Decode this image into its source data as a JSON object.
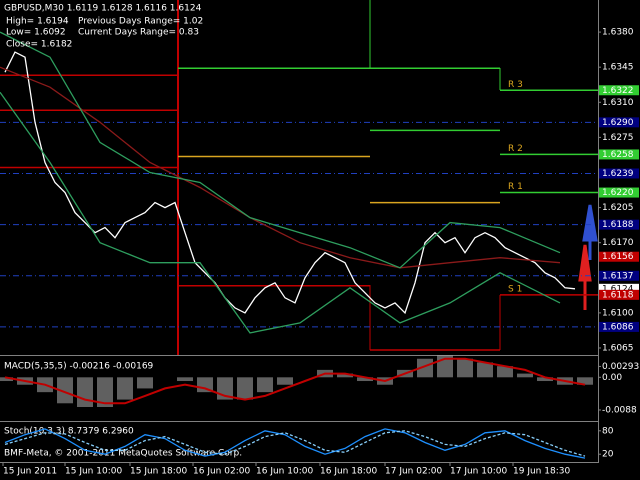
{
  "chart_data": [
    {
      "type": "line",
      "title": "GBPUSD,M30  1.6119 1.6128 1.6116 1.6124",
      "info": [
        "High= 1.6194",
        "Previous Days Range= 1.02",
        "Low= 1.6092",
        "Current Days Range= 0.83",
        "Close= 1.6182"
      ],
      "footer": "BMF-Meta, © 2001-2011 MetaQuotes Software Corp.",
      "xlim": [
        -0.5,
        59.3
      ],
      "ylim": [
        1.6058,
        1.6412
      ],
      "xticks": [
        {
          "value": -0.2,
          "label": "15 Jun 2011"
        },
        {
          "value": 6,
          "label": "15 Jun 10:00"
        },
        {
          "value": 12.5,
          "label": "15 Jun 18:00"
        },
        {
          "value": 18.8,
          "label": "16 Jun 02:00"
        },
        {
          "value": 25.1,
          "label": "16 Jun 10:00"
        },
        {
          "value": 31.5,
          "label": "16 Jun 18:00"
        },
        {
          "value": 38,
          "label": "17 Jun 02:00"
        },
        {
          "value": 44.5,
          "label": "17 Jun 10:00"
        },
        {
          "value": 50.8,
          "label": "19 Jun 18:30"
        }
      ],
      "yticks": [
        {
          "value": 1.638,
          "label": "1.6380"
        },
        {
          "value": 1.6345,
          "label": "1.6345"
        },
        {
          "value": 1.631,
          "label": "1.6310"
        },
        {
          "value": 1.6275,
          "label": "1.6275"
        },
        {
          "value": 1.6205,
          "label": "1.6205"
        },
        {
          "value": 1.617,
          "label": "1.6170"
        },
        {
          "value": 1.61,
          "label": "1.6100"
        },
        {
          "value": 1.6065,
          "label": "1.6065"
        }
      ],
      "series": [
        {
          "color": "#ffffff",
          "x": [
            0,
            1,
            2,
            3,
            4,
            5,
            6,
            7,
            8,
            9,
            10,
            11,
            12,
            13,
            14,
            15,
            16,
            17,
            18,
            19,
            20,
            21,
            22,
            23,
            24,
            25,
            26,
            27,
            28,
            29,
            30,
            31,
            32,
            33,
            34,
            35,
            36,
            37,
            38,
            39,
            40,
            41,
            42,
            43,
            44,
            45,
            46,
            47,
            48,
            49,
            50,
            51,
            52,
            53,
            54,
            55,
            56,
            57
          ],
          "values": [
            1.634,
            1.636,
            1.6355,
            1.629,
            1.625,
            1.623,
            1.622,
            1.62,
            1.619,
            1.618,
            1.6185,
            1.6175,
            1.619,
            1.6195,
            1.62,
            1.621,
            1.6205,
            1.621,
            1.618,
            1.615,
            1.614,
            1.613,
            1.6115,
            1.6105,
            1.61,
            1.6115,
            1.6125,
            1.613,
            1.6115,
            1.611,
            1.6135,
            1.615,
            1.616,
            1.6155,
            1.615,
            1.613,
            1.612,
            1.611,
            1.6105,
            1.611,
            1.61,
            1.613,
            1.617,
            1.618,
            1.617,
            1.6175,
            1.616,
            1.6175,
            1.618,
            1.6175,
            1.6165,
            1.616,
            1.6155,
            1.615,
            1.614,
            1.6135,
            1.6125,
            1.6124
          ]
        },
        {
          "color": "#8b1a1a",
          "x": [
            -0.5,
            4.5,
            9.5,
            14.5,
            19.5,
            24.5,
            29.5,
            34.5,
            39.5,
            44.5,
            49.5,
            55.5
          ],
          "values": [
            1.6345,
            1.6325,
            1.629,
            1.625,
            1.6225,
            1.6195,
            1.617,
            1.6155,
            1.6145,
            1.615,
            1.6155,
            1.615
          ]
        },
        {
          "color": "#2e9e5e",
          "x": [
            -0.5,
            4.5,
            9.5,
            14.5,
            19.5,
            24.5,
            29.5,
            34.5,
            39.5,
            44.5,
            49.5,
            55.5
          ],
          "values": [
            1.638,
            1.6355,
            1.627,
            1.624,
            1.623,
            1.6195,
            1.618,
            1.6165,
            1.6145,
            1.619,
            1.6185,
            1.616
          ]
        },
        {
          "color": "#2e9e5e",
          "x": [
            -0.5,
            4.5,
            9.5,
            14.5,
            19.5,
            24.5,
            29.5,
            34.5,
            39.5,
            44.5,
            49.5,
            55.5
          ],
          "values": [
            1.632,
            1.625,
            1.617,
            1.615,
            1.615,
            1.608,
            1.609,
            1.6125,
            1.609,
            1.611,
            1.614,
            1.611
          ]
        }
      ],
      "pivots": [
        {
          "x": [
            -0.5,
            17.3
          ],
          "value": 1.6337,
          "color": "#c00000"
        },
        {
          "x": [
            -0.5,
            17.3
          ],
          "value": 1.6302,
          "color": "#c00000"
        },
        {
          "x": [
            -0.5,
            17.3
          ],
          "value": 1.6245,
          "color": "#c00000"
        },
        {
          "x": [
            17.3,
            36.5
          ],
          "value": 1.6344,
          "color": "#32cd32"
        },
        {
          "x": [
            17.3,
            36.5
          ],
          "value": 1.6256,
          "color": "#daa520"
        },
        {
          "x": [
            17.3,
            36.5
          ],
          "value": 1.6127,
          "color": "#c00000"
        },
        {
          "x": [
            36.5,
            49.5
          ],
          "value": 1.6344,
          "color": "#32cd32"
        },
        {
          "x": [
            36.5,
            49.5
          ],
          "value": 1.6282,
          "color": "#32cd32"
        },
        {
          "x": [
            36.5,
            49.5
          ],
          "value": 1.621,
          "color": "#daa520"
        },
        {
          "x": [
            36.5,
            49.5
          ],
          "value": 1.6063,
          "color": "#c00000"
        },
        {
          "x": [
            49.5,
            59.3
          ],
          "value": 1.6322,
          "color": "#32cd32",
          "name": "R 3"
        },
        {
          "x": [
            49.5,
            59.3
          ],
          "value": 1.6258,
          "color": "#32cd32",
          "name": "R 2"
        },
        {
          "x": [
            49.5,
            59.3
          ],
          "value": 1.622,
          "color": "#32cd32",
          "name": "R 1"
        },
        {
          "x": [
            49.5,
            59.3
          ],
          "value": 1.6118,
          "color": "#c00000",
          "name": "S 1"
        }
      ],
      "levels": [
        {
          "value": 1.6322,
          "label": "1.6322",
          "color": "#32cd32"
        },
        {
          "value": 1.629,
          "label": "1.6290",
          "color": "#000080",
          "style": "dashed"
        },
        {
          "value": 1.6258,
          "label": "1.6258",
          "color": "#32cd32"
        },
        {
          "value": 1.6239,
          "label": "1.6239",
          "color": "#000080",
          "style": "dashed"
        },
        {
          "value": 1.622,
          "label": "1.6220",
          "color": "#32cd32"
        },
        {
          "value": 1.6188,
          "label": "1.6188",
          "color": "#000080",
          "style": "dashed"
        },
        {
          "value": 1.6156,
          "label": "1.6156",
          "color": "#c00000"
        },
        {
          "value": 1.6137,
          "label": "1.6137",
          "color": "#000080",
          "style": "dashed"
        },
        {
          "value": 1.6124,
          "label": "1.6124",
          "color": "#ffffff"
        },
        {
          "value": 1.6118,
          "label": "1.6118",
          "color": "#c00000"
        },
        {
          "value": 1.6086,
          "label": "1.6086",
          "color": "#000080",
          "style": "dashed"
        }
      ]
    },
    {
      "type": "macd",
      "title": "MACD(5,35,5) -0.00216 -0.00169",
      "xlim": [
        -0.5,
        59.3
      ],
      "ylim": [
        -0.0115,
        0.0052
      ],
      "yticks": [
        0.00293,
        {
          "value": 0,
          "label": "0.00"
        },
        -0.0088
      ],
      "series": [
        {
          "color": "#a0a0a0",
          "x": [
            0,
            2,
            4,
            6,
            8,
            10,
            12,
            14,
            16,
            18,
            20,
            22,
            24,
            26,
            28,
            30,
            32,
            34,
            36,
            38,
            40,
            42,
            44,
            46,
            48,
            50,
            52,
            54,
            56,
            58
          ],
          "values": [
            -0.001,
            -0.002,
            -0.004,
            -0.007,
            -0.008,
            -0.008,
            -0.006,
            -0.003,
            0,
            -0.001,
            -0.004,
            -0.006,
            -0.006,
            -0.004,
            -0.002,
            0,
            0.002,
            0.001,
            -0.001,
            -0.002,
            0.002,
            0.005,
            0.006,
            0.005,
            0.004,
            0.003,
            0.001,
            -0.001,
            -0.002,
            -0.002
          ]
        },
        {
          "color": "#c00000",
          "x": [
            0,
            2,
            4,
            6,
            8,
            10,
            12,
            14,
            16,
            18,
            20,
            22,
            24,
            26,
            28,
            30,
            32,
            34,
            36,
            38,
            40,
            42,
            44,
            46,
            48,
            50,
            52,
            54,
            56,
            58
          ],
          "values": [
            0,
            -0.001,
            -0.002,
            -0.004,
            -0.006,
            -0.007,
            -0.007,
            -0.005,
            -0.003,
            -0.002,
            -0.003,
            -0.005,
            -0.006,
            -0.005,
            -0.003,
            -0.001,
            0.001,
            0.001,
            0,
            -0.001,
            0.001,
            0.003,
            0.005,
            0.005,
            0.004,
            0.003,
            0.002,
            0,
            -0.001,
            -0.002
          ]
        }
      ]
    },
    {
      "type": "stoch",
      "title": "Stoch(10,3,3) 8.7379 6.2960",
      "xlim": [
        -0.5,
        59.3
      ],
      "ylim": [
        0,
        100
      ],
      "yticks": [
        80,
        20
      ],
      "series": [
        {
          "color": "#1e90ff",
          "x": [
            0,
            2,
            4,
            6,
            8,
            10,
            12,
            14,
            16,
            18,
            20,
            22,
            24,
            26,
            28,
            30,
            32,
            34,
            36,
            38,
            40,
            42,
            44,
            46,
            48,
            50,
            52,
            54,
            56,
            58
          ],
          "values": [
            50,
            70,
            85,
            60,
            30,
            20,
            40,
            70,
            60,
            30,
            15,
            25,
            55,
            80,
            70,
            40,
            20,
            35,
            65,
            85,
            75,
            50,
            30,
            45,
            75,
            80,
            55,
            35,
            20,
            10
          ]
        },
        {
          "color": "#87cefa",
          "dashed": true,
          "x": [
            0,
            2,
            4,
            6,
            8,
            10,
            12,
            14,
            16,
            18,
            20,
            22,
            24,
            26,
            28,
            30,
            32,
            34,
            36,
            38,
            40,
            42,
            44,
            46,
            48,
            50,
            52,
            54,
            56,
            58
          ],
          "values": [
            45,
            60,
            75,
            72,
            50,
            30,
            30,
            55,
            65,
            45,
            25,
            20,
            40,
            65,
            75,
            55,
            30,
            25,
            50,
            75,
            80,
            65,
            45,
            40,
            60,
            75,
            70,
            50,
            30,
            15
          ]
        }
      ]
    }
  ]
}
